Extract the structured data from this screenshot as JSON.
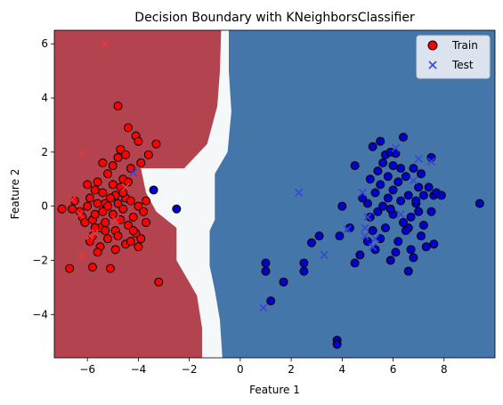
{
  "chart_data": {
    "type": "scatter",
    "title": "Decision Boundary with KNeighborsClassifier",
    "xlabel": "Feature 1",
    "ylabel": "Feature 2",
    "xlim": [
      -7.3,
      10.0
    ],
    "ylim": [
      -5.6,
      6.5
    ],
    "xticks": [
      -6,
      -4,
      -2,
      0,
      2,
      4,
      6,
      8
    ],
    "yticks": [
      -4,
      -2,
      0,
      2,
      4,
      6
    ],
    "grid": false,
    "legend_position": "top-right",
    "colors": {
      "red_region": "#b2434f",
      "blue_region": "#4576aa",
      "boundary_region": "#f5f8f8",
      "train_red": "#ff0000",
      "train_blue": "#0000cc",
      "test_red": "#e8393a",
      "test_blue": "#3a45d9"
    },
    "regions": {
      "red": [
        [
          -7.3,
          6.5
        ],
        [
          -0.75,
          6.5
        ],
        [
          -0.8,
          5.0
        ],
        [
          -0.9,
          3.7
        ],
        [
          -1.3,
          2.3
        ],
        [
          -2.2,
          1.4
        ],
        [
          -3.9,
          1.4
        ],
        [
          -3.7,
          0.5
        ],
        [
          -3.3,
          -0.2
        ],
        [
          -2.5,
          -0.8
        ],
        [
          -2.5,
          -2.0
        ],
        [
          -1.7,
          -3.3
        ],
        [
          -1.5,
          -4.5
        ],
        [
          -1.5,
          -5.6
        ],
        [
          -7.3,
          -5.6
        ]
      ],
      "blue": [
        [
          -0.45,
          6.5
        ],
        [
          10.0,
          6.5
        ],
        [
          10.0,
          -5.6
        ],
        [
          -0.7,
          -5.6
        ],
        [
          -0.8,
          -4.2
        ],
        [
          -1.0,
          -3.1
        ],
        [
          -1.2,
          -2.2
        ],
        [
          -1.2,
          -0.9
        ],
        [
          -1.0,
          -0.5
        ],
        [
          -1.0,
          1.2
        ],
        [
          -0.5,
          2.0
        ],
        [
          -0.35,
          3.5
        ],
        [
          -0.45,
          5.0
        ]
      ]
    },
    "series": [
      {
        "name": "Train",
        "marker": "circle",
        "groups": [
          {
            "class": "red",
            "points": [
              [
                -7.0,
                -0.1
              ],
              [
                -6.7,
                -2.3
              ],
              [
                -6.6,
                -0.1
              ],
              [
                -6.5,
                0.2
              ],
              [
                -6.3,
                -0.2
              ],
              [
                -6.2,
                -0.4
              ],
              [
                -6.0,
                0.8
              ],
              [
                -6.0,
                0.0
              ],
              [
                -5.9,
                0.3
              ],
              [
                -5.8,
                -0.5
              ],
              [
                -5.8,
                -1.1
              ],
              [
                -5.8,
                -2.25
              ],
              [
                -5.7,
                0.6
              ],
              [
                -5.7,
                -0.3
              ],
              [
                -5.6,
                0.9
              ],
              [
                -5.6,
                0.1
              ],
              [
                -5.5,
                -0.8
              ],
              [
                -5.5,
                -1.5
              ],
              [
                -5.4,
                0.5
              ],
              [
                -5.4,
                -0.2
              ],
              [
                -5.3,
                0.1
              ],
              [
                -5.3,
                -0.6
              ],
              [
                -5.2,
                1.2
              ],
              [
                -5.2,
                0.0
              ],
              [
                -5.2,
                -1.2
              ],
              [
                -5.1,
                -2.3
              ],
              [
                -5.0,
                1.5
              ],
              [
                -5.0,
                0.8
              ],
              [
                -5.0,
                -0.3
              ],
              [
                -4.9,
                0.4
              ],
              [
                -4.9,
                -0.9
              ],
              [
                -4.8,
                3.7
              ],
              [
                -4.8,
                1.8
              ],
              [
                -4.8,
                0.1
              ],
              [
                -4.7,
                2.1
              ],
              [
                -4.7,
                0.7
              ],
              [
                -4.7,
                -0.5
              ],
              [
                -4.6,
                1.0
              ],
              [
                -4.6,
                -0.1
              ],
              [
                -4.5,
                0.3
              ],
              [
                -4.5,
                -1.4
              ],
              [
                -4.4,
                2.9
              ],
              [
                -4.4,
                0.9
              ],
              [
                -4.4,
                -0.7
              ],
              [
                -4.3,
                1.4
              ],
              [
                -4.3,
                0.2
              ],
              [
                -4.2,
                -0.4
              ],
              [
                -4.1,
                2.6
              ],
              [
                -4.1,
                -1.0
              ],
              [
                -4.0,
                2.4
              ],
              [
                -4.0,
                0.0
              ],
              [
                -3.9,
                1.6
              ],
              [
                -3.9,
                -1.2
              ],
              [
                -3.8,
                -0.2
              ],
              [
                -3.7,
                0.2
              ],
              [
                -3.7,
                -0.6
              ],
              [
                -3.3,
                2.3
              ],
              [
                -3.2,
                -2.8
              ],
              [
                -5.9,
                -1.3
              ],
              [
                -5.6,
                -1.7
              ],
              [
                -4.9,
                -1.6
              ],
              [
                -4.2,
                -0.9
              ],
              [
                -4.0,
                -1.5
              ],
              [
                -5.1,
                0.3
              ],
              [
                -4.6,
                0.5
              ],
              [
                -5.3,
                -0.9
              ],
              [
                -4.8,
                -1.1
              ],
              [
                -6.1,
                -0.6
              ],
              [
                -5.4,
                1.6
              ],
              [
                -4.5,
                1.9
              ],
              [
                -3.6,
                1.9
              ],
              [
                -4.3,
                -1.3
              ],
              [
                -5.7,
                -0.8
              ]
            ]
          },
          {
            "class": "blue",
            "points": [
              [
                -3.4,
                0.6
              ],
              [
                -2.5,
                -0.1
              ],
              [
                1.0,
                -2.1
              ],
              [
                1.0,
                -2.4
              ],
              [
                1.2,
                -3.5
              ],
              [
                1.7,
                -2.8
              ],
              [
                2.5,
                -2.1
              ],
              [
                2.5,
                -2.4
              ],
              [
                2.8,
                -1.35
              ],
              [
                3.1,
                -1.1
              ],
              [
                3.8,
                -4.95
              ],
              [
                3.8,
                -5.1
              ],
              [
                3.9,
                -1.1
              ],
              [
                4.0,
                0.0
              ],
              [
                4.5,
                -2.1
              ],
              [
                4.5,
                1.5
              ],
              [
                4.7,
                -1.8
              ],
              [
                4.8,
                0.3
              ],
              [
                5.0,
                -1.3
              ],
              [
                5.0,
                0.1
              ],
              [
                5.1,
                -0.4
              ],
              [
                5.1,
                1.0
              ],
              [
                5.2,
                -0.9
              ],
              [
                5.2,
                2.2
              ],
              [
                5.3,
                -1.6
              ],
              [
                5.3,
                0.5
              ],
              [
                5.4,
                1.3
              ],
              [
                5.4,
                -0.2
              ],
              [
                5.5,
                2.4
              ],
              [
                5.5,
                0.8
              ],
              [
                5.5,
                -1.2
              ],
              [
                5.6,
                1.6
              ],
              [
                5.6,
                0.0
              ],
              [
                5.7,
                1.9
              ],
              [
                5.7,
                -0.8
              ],
              [
                5.8,
                1.1
              ],
              [
                5.8,
                0.3
              ],
              [
                5.9,
                2.0
              ],
              [
                5.9,
                -2.0
              ],
              [
                6.0,
                0.6
              ],
              [
                6.0,
                1.5
              ],
              [
                6.0,
                -0.3
              ],
              [
                6.1,
                1.95
              ],
              [
                6.2,
                0.9
              ],
              [
                6.2,
                -1.3
              ],
              [
                6.3,
                0.2
              ],
              [
                6.4,
                2.55
              ],
              [
                6.4,
                -0.6
              ],
              [
                6.5,
                1.1
              ],
              [
                6.6,
                -2.4
              ],
              [
                6.6,
                0.4
              ],
              [
                6.7,
                -0.4
              ],
              [
                6.8,
                1.4
              ],
              [
                6.8,
                -1.9
              ],
              [
                6.9,
                0.1
              ],
              [
                7.0,
                0.7
              ],
              [
                7.0,
                -0.2
              ],
              [
                7.1,
                1.2
              ],
              [
                7.1,
                -1.1
              ],
              [
                7.2,
                0.4
              ],
              [
                7.3,
                -1.5
              ],
              [
                7.4,
                0.7
              ],
              [
                7.5,
                1.8
              ],
              [
                7.5,
                -0.2
              ],
              [
                7.6,
                0.4
              ],
              [
                7.6,
                -1.4
              ],
              [
                7.7,
                0.5
              ],
              [
                7.9,
                0.4
              ],
              [
                9.4,
                0.1
              ],
              [
                6.9,
                0.2
              ],
              [
                6.6,
                -0.8
              ],
              [
                6.3,
                1.4
              ],
              [
                5.9,
                -0.1
              ],
              [
                6.1,
                -1.7
              ],
              [
                4.3,
                -0.8
              ],
              [
                6.5,
                -0.9
              ],
              [
                7.2,
                -0.7
              ],
              [
                6.7,
                -1.6
              ]
            ]
          }
        ]
      },
      {
        "name": "Test",
        "marker": "x",
        "groups": [
          {
            "class": "red",
            "points": [
              [
                -5.3,
                6.0
              ],
              [
                -6.2,
                1.95
              ],
              [
                -6.6,
                0.25
              ],
              [
                -6.3,
                -0.3
              ],
              [
                -5.9,
                -1.1
              ],
              [
                -6.2,
                -1.85
              ],
              [
                -5.7,
                -1.0
              ],
              [
                -4.5,
                0.7
              ],
              [
                -4.9,
                -0.5
              ]
            ]
          },
          {
            "class": "blue",
            "points": [
              [
                -4.2,
                1.25
              ],
              [
                0.9,
                -3.75
              ],
              [
                2.3,
                0.5
              ],
              [
                3.3,
                -1.8
              ],
              [
                4.2,
                -0.85
              ],
              [
                4.8,
                0.5
              ],
              [
                4.9,
                -0.8
              ],
              [
                4.9,
                -1.1
              ],
              [
                5.0,
                -0.4
              ],
              [
                5.2,
                -1.5
              ],
              [
                5.3,
                -1.2
              ],
              [
                6.1,
                2.15
              ],
              [
                6.3,
                -0.3
              ],
              [
                6.8,
                0.95
              ],
              [
                7.0,
                1.75
              ],
              [
                7.5,
                1.65
              ]
            ]
          }
        ]
      }
    ],
    "legend": [
      {
        "label": "Train",
        "marker": "circle"
      },
      {
        "label": "Test",
        "marker": "x"
      }
    ]
  }
}
